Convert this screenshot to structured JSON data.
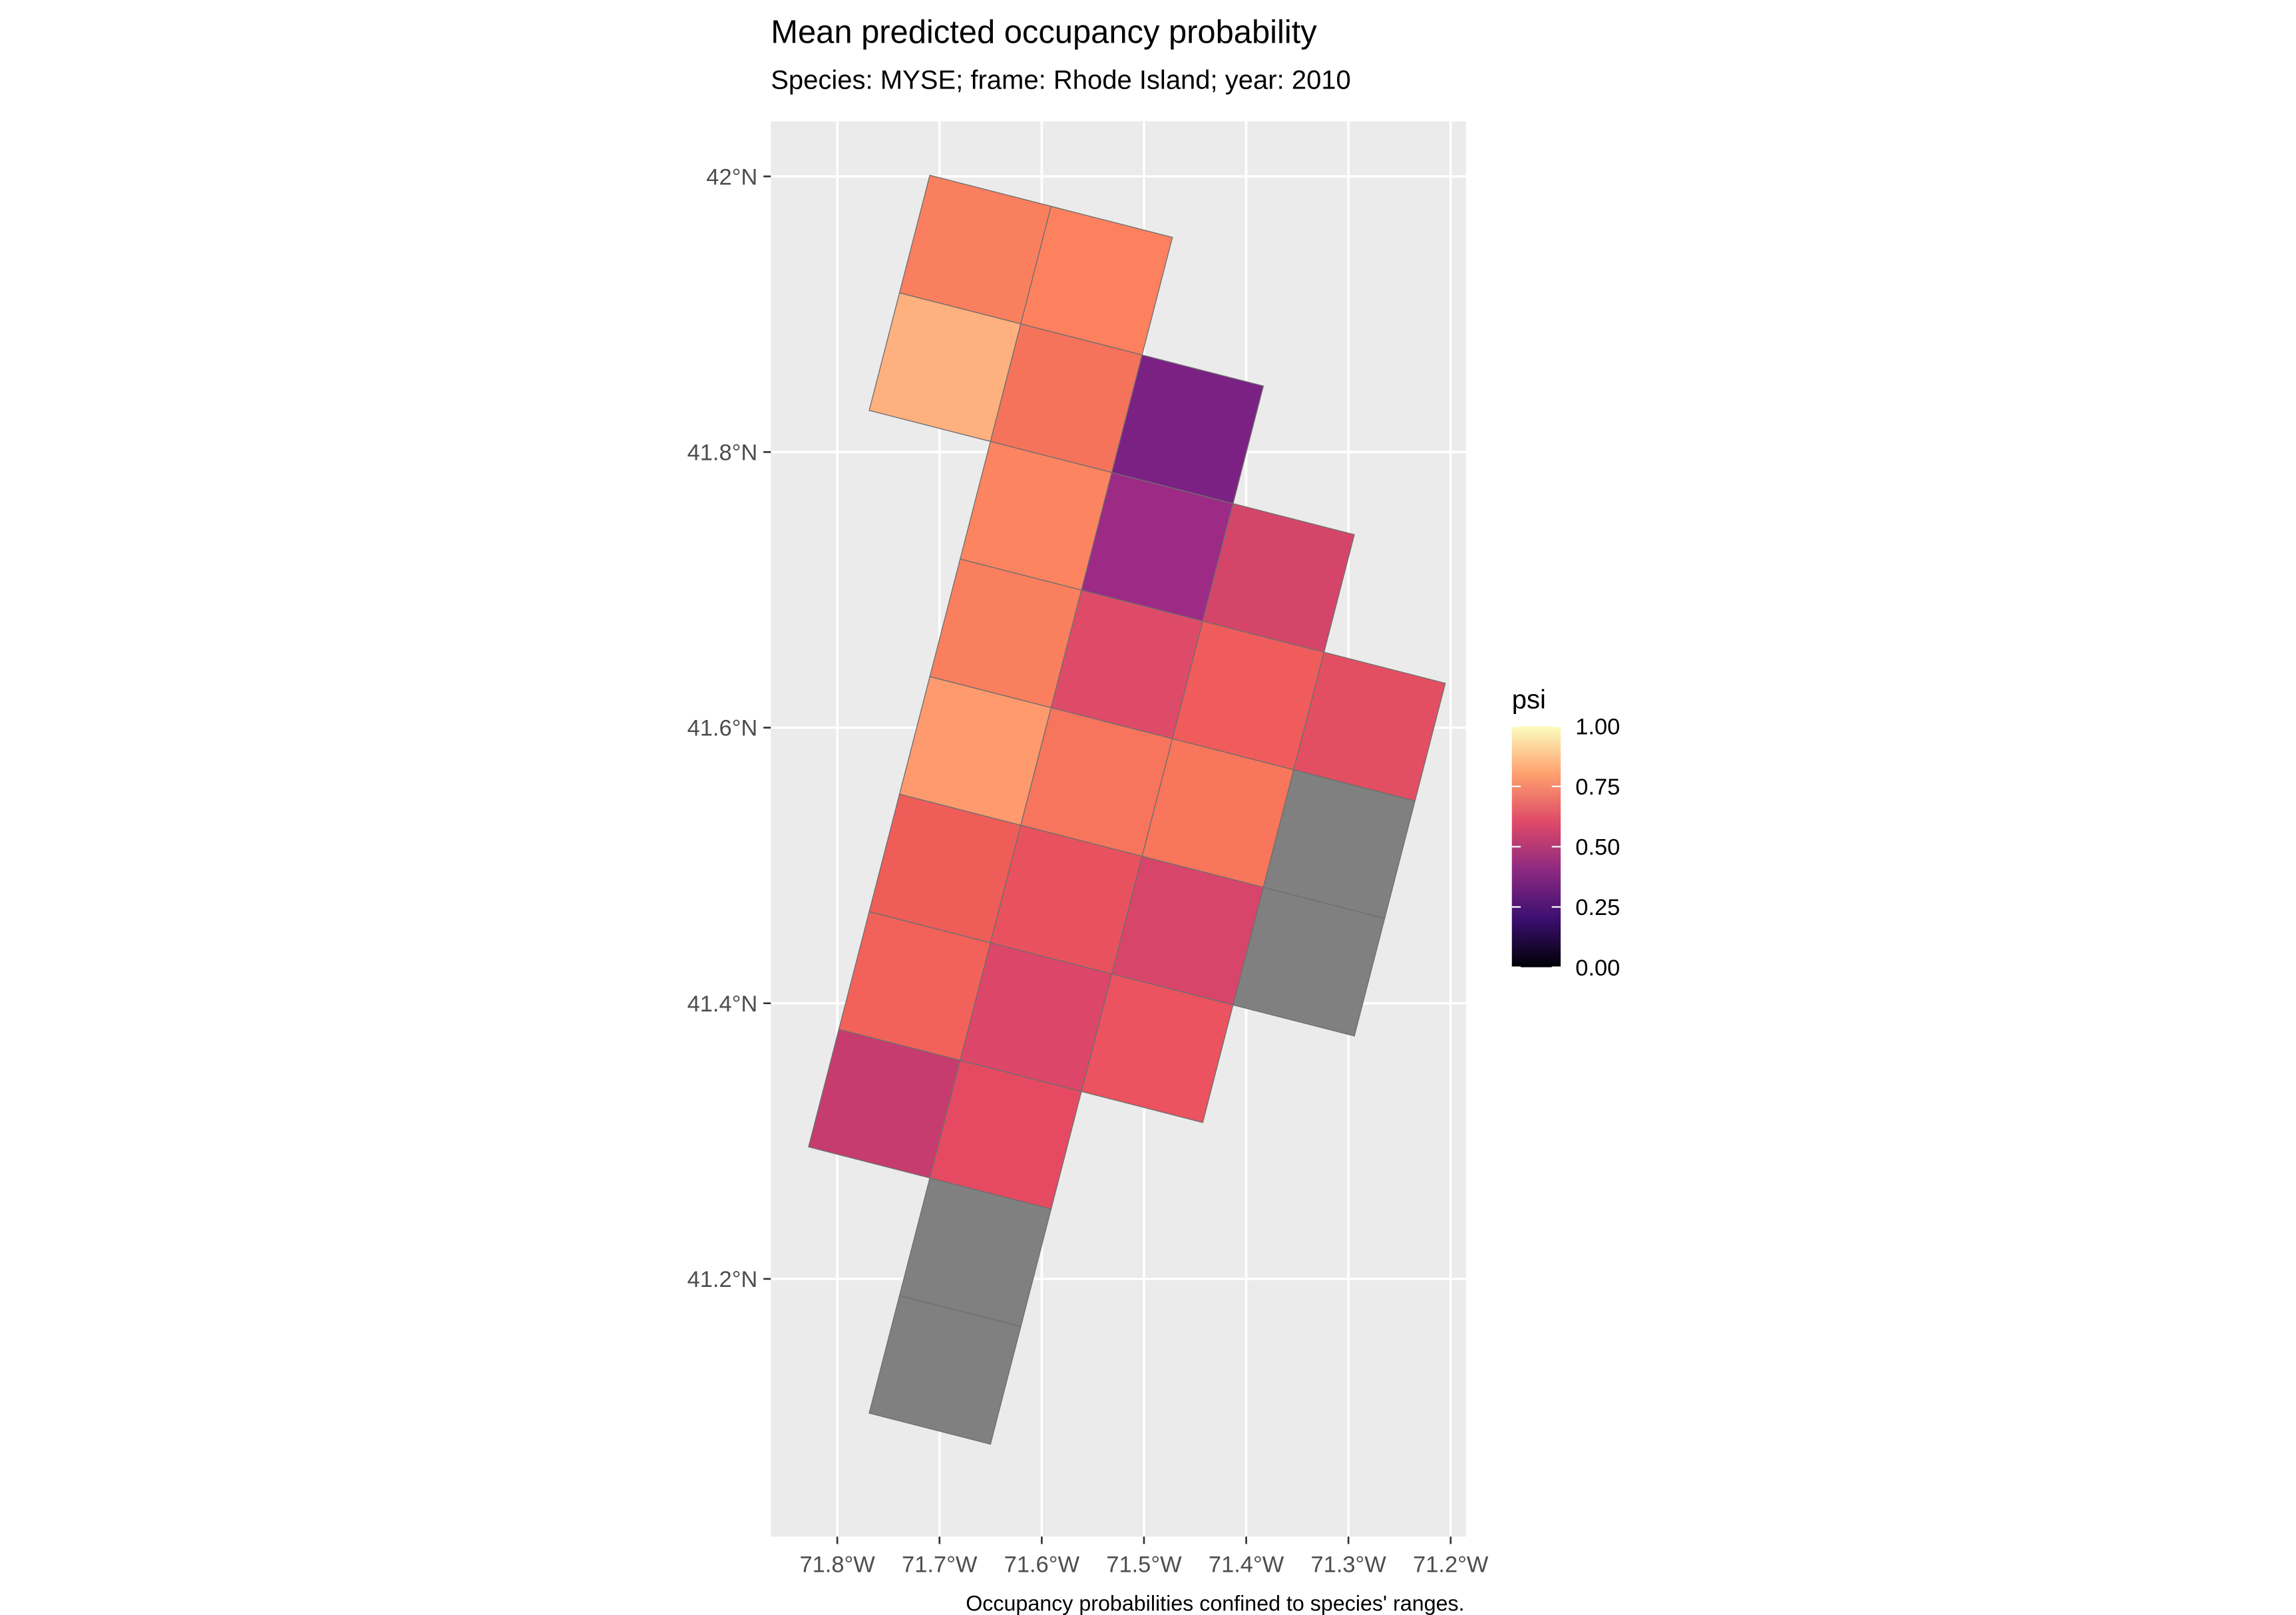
{
  "title": "Mean predicted occupancy probability",
  "subtitle": "Species: MYSE; frame: Rhode Island; year: 2010",
  "caption": "Occupancy probabilities confined to species' ranges.",
  "colors": {
    "panel_background": "#ebebeb",
    "grid_line": "#ffffff",
    "cell_border": "#6e6e6e",
    "na_fill": "#808080"
  },
  "chart_data": {
    "type": "heatmap",
    "map_type": "choropleth grid",
    "x_axis": {
      "ticks": [
        {
          "value": -71.8,
          "label": "71.8°W"
        },
        {
          "value": -71.7,
          "label": "71.7°W"
        },
        {
          "value": -71.6,
          "label": "71.6°W"
        },
        {
          "value": -71.5,
          "label": "71.5°W"
        },
        {
          "value": -71.4,
          "label": "71.4°W"
        },
        {
          "value": -71.3,
          "label": "71.3°W"
        },
        {
          "value": -71.2,
          "label": "71.2°W"
        }
      ],
      "range": [
        -71.865,
        -71.185
      ]
    },
    "y_axis": {
      "ticks": [
        {
          "value": 41.2,
          "label": "41.2°N"
        },
        {
          "value": 41.4,
          "label": "41.4°N"
        },
        {
          "value": 41.6,
          "label": "41.6°N"
        },
        {
          "value": 41.8,
          "label": "41.8°N"
        },
        {
          "value": 42.0,
          "label": "42°N"
        }
      ],
      "range": [
        41.013,
        42.04
      ]
    },
    "grid": true,
    "legend": {
      "title": "psi",
      "placement": "right",
      "min": 0,
      "max": 1,
      "ticks": [
        {
          "value": 0.0,
          "label": "0.00"
        },
        {
          "value": 0.25,
          "label": "0.25"
        },
        {
          "value": 0.5,
          "label": "0.50"
        },
        {
          "value": 0.75,
          "label": "0.75"
        },
        {
          "value": 1.0,
          "label": "1.00"
        }
      ],
      "palette": "magma",
      "colors": [
        "#000004",
        "#3b0f70",
        "#8c2981",
        "#de4968",
        "#fe9f6d",
        "#fcfdbf"
      ]
    },
    "cells": [
      {
        "col": 0,
        "row": 0,
        "psi": 0.76,
        "color": "#fa7f5e"
      },
      {
        "col": 1,
        "row": 0,
        "psi": 0.77,
        "color": "#fd815f"
      },
      {
        "col": 0,
        "row": 1,
        "psi": 0.87,
        "color": "#feb07e"
      },
      {
        "col": 1,
        "row": 1,
        "psi": 0.71,
        "color": "#f5735b"
      },
      {
        "col": 2,
        "row": 1,
        "psi": 0.3,
        "color": "#7c2184"
      },
      {
        "col": 1,
        "row": 2,
        "psi": 0.76,
        "color": "#fd8460"
      },
      {
        "col": 2,
        "row": 2,
        "psi": 0.39,
        "color": "#9d2b85"
      },
      {
        "col": 3,
        "row": 2,
        "psi": 0.54,
        "color": "#d5456a"
      },
      {
        "col": 1,
        "row": 3,
        "psi": 0.76,
        "color": "#f97f5e"
      },
      {
        "col": 2,
        "row": 3,
        "psi": 0.56,
        "color": "#de4b68"
      },
      {
        "col": 3,
        "row": 3,
        "psi": 0.66,
        "color": "#f05c5c"
      },
      {
        "col": 4,
        "row": 3,
        "psi": 0.6,
        "color": "#e34f62"
      },
      {
        "col": 1,
        "row": 4,
        "psi": 0.82,
        "color": "#fe9a6e"
      },
      {
        "col": 2,
        "row": 4,
        "psi": 0.72,
        "color": "#f7755c"
      },
      {
        "col": 3,
        "row": 4,
        "psi": 0.72,
        "color": "#f8765b"
      },
      {
        "col": 4,
        "row": 4,
        "psi": null,
        "color": "#808080"
      },
      {
        "col": 1,
        "row": 5,
        "psi": 0.64,
        "color": "#ef5d59"
      },
      {
        "col": 2,
        "row": 5,
        "psi": 0.61,
        "color": "#e8525e"
      },
      {
        "col": 3,
        "row": 5,
        "psi": 0.55,
        "color": "#d8456a"
      },
      {
        "col": 4,
        "row": 5,
        "psi": null,
        "color": "#808080"
      },
      {
        "col": 1,
        "row": 6,
        "psi": 0.67,
        "color": "#f2625a"
      },
      {
        "col": 2,
        "row": 6,
        "psi": 0.56,
        "color": "#dc4769"
      },
      {
        "col": 3,
        "row": 6,
        "psi": 0.62,
        "color": "#ea535f"
      },
      {
        "col": 1,
        "row": 7,
        "psi": 0.48,
        "color": "#c73c6f"
      },
      {
        "col": 2,
        "row": 7,
        "psi": 0.6,
        "color": "#e64a62"
      },
      {
        "col": 2,
        "row": 8,
        "psi": null,
        "color": "#808080"
      },
      {
        "col": 2,
        "row": 9,
        "psi": null,
        "color": "#808080"
      }
    ]
  }
}
